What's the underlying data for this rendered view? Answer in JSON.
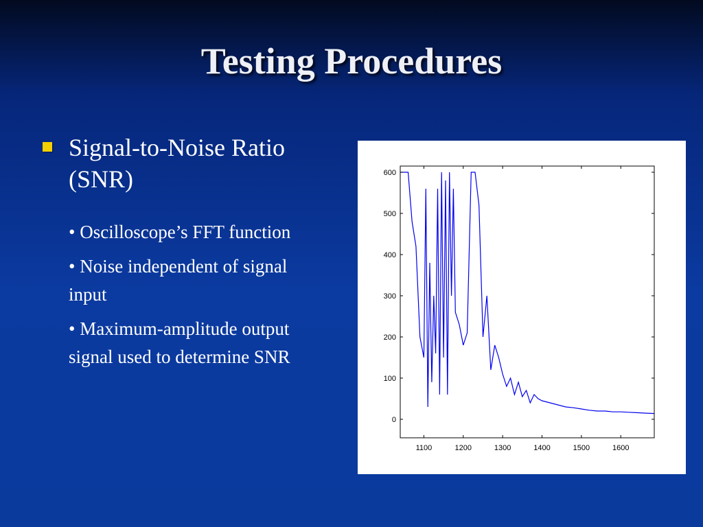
{
  "slide": {
    "title": "Testing Procedures",
    "main_bullet": "Signal-to-Noise Ratio (SNR)",
    "sub_bullets": [
      "• Oscilloscope’s FFT function",
      "• Noise independent of signal input",
      "• Maximum-amplitude output signal used to determine SNR"
    ],
    "bullet_color": "#f5d000"
  },
  "chart_data": {
    "type": "line",
    "title": "",
    "xlabel": "",
    "ylabel": "",
    "xlim": [
      1040,
      1685
    ],
    "ylim": [
      -45,
      615
    ],
    "x_ticks": [
      "1100",
      "1200",
      "1300",
      "1400",
      "1500",
      "1600"
    ],
    "y_ticks": [
      "0",
      "100",
      "200",
      "300",
      "400",
      "500",
      "600"
    ],
    "line_color": "#0000ee",
    "series": [
      {
        "values_x": [
          1040,
          1050,
          1060,
          1070,
          1080,
          1090,
          1100,
          1105,
          1110,
          1115,
          1120,
          1125,
          1130,
          1135,
          1140,
          1145,
          1150,
          1155,
          1160,
          1165,
          1170,
          1175,
          1180,
          1190,
          1200,
          1210,
          1220,
          1225,
          1230,
          1240,
          1250,
          1260,
          1270,
          1280,
          1290,
          1300,
          1310,
          1320,
          1330,
          1340,
          1350,
          1360,
          1370,
          1380,
          1390,
          1400,
          1420,
          1440,
          1460,
          1480,
          1500,
          1520,
          1540,
          1560,
          1580,
          1600,
          1620,
          1640,
          1660,
          1685
        ],
        "values_y": [
          600,
          600,
          600,
          480,
          420,
          200,
          150,
          560,
          30,
          380,
          90,
          300,
          160,
          560,
          60,
          600,
          150,
          580,
          60,
          600,
          300,
          560,
          260,
          230,
          180,
          210,
          600,
          600,
          600,
          520,
          200,
          300,
          120,
          180,
          150,
          110,
          80,
          100,
          60,
          90,
          55,
          70,
          40,
          60,
          50,
          45,
          40,
          35,
          30,
          28,
          25,
          22,
          20,
          20,
          18,
          18,
          17,
          16,
          15,
          14
        ]
      }
    ]
  }
}
